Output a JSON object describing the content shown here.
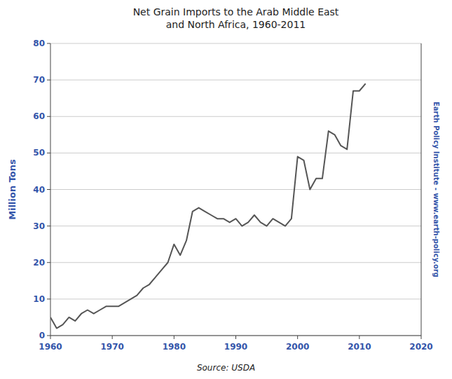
{
  "chart_data": {
    "type": "line",
    "title": "Net Grain Imports to the Arab Middle East\nand North Africa, 1960-2011",
    "ylabel": "Million Tons",
    "annotations": [
      "Source: USDA",
      "Earth Policy Institute - www.earth-policy.org"
    ],
    "color": "#555555",
    "grid": true,
    "xlim": [
      1960,
      2020
    ],
    "ylim": [
      0,
      80
    ],
    "xticks": [
      1960,
      1970,
      1980,
      1990,
      2000,
      2010,
      2020
    ],
    "yticks": [
      0,
      10,
      20,
      30,
      40,
      50,
      60,
      70,
      80
    ],
    "x": [
      1960,
      1961,
      1962,
      1963,
      1964,
      1965,
      1966,
      1967,
      1968,
      1969,
      1970,
      1971,
      1972,
      1973,
      1974,
      1975,
      1976,
      1977,
      1978,
      1979,
      1980,
      1981,
      1982,
      1983,
      1984,
      1985,
      1986,
      1987,
      1988,
      1989,
      1990,
      1991,
      1992,
      1993,
      1994,
      1995,
      1996,
      1997,
      1998,
      1999,
      2000,
      2001,
      2002,
      2003,
      2004,
      2005,
      2006,
      2007,
      2008,
      2009,
      2010,
      2011
    ],
    "values": [
      5,
      2,
      3,
      5,
      4,
      6,
      7,
      6,
      7,
      8,
      8,
      8,
      9,
      10,
      11,
      13,
      14,
      16,
      18,
      20,
      25,
      22,
      26,
      34,
      35,
      34,
      33,
      32,
      32,
      31,
      32,
      30,
      31,
      33,
      31,
      30,
      32,
      31,
      30,
      32,
      49,
      48,
      40,
      43,
      43,
      56,
      55,
      52,
      51,
      67,
      67,
      69
    ]
  }
}
